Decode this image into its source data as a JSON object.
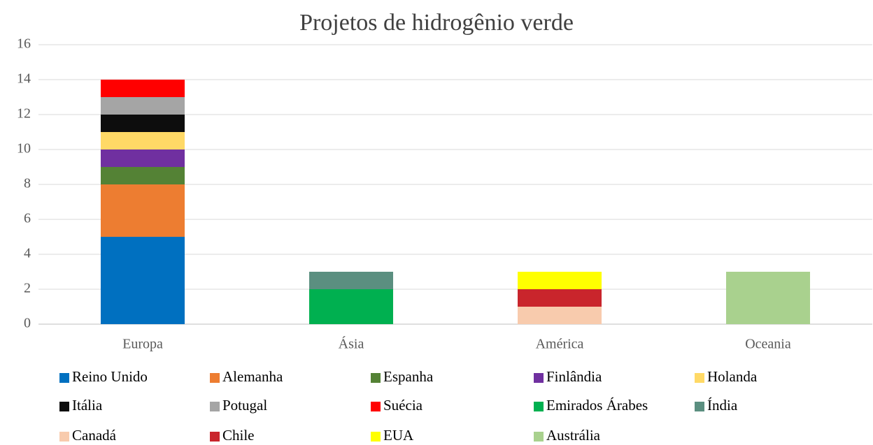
{
  "chart_data": {
    "type": "stacked_bar",
    "title": "Projetos de hidrogênio verde",
    "categories": [
      "Europa",
      "Ásia",
      "América",
      "Oceania"
    ],
    "series": [
      {
        "name": "Reino Unido",
        "color": "#0070c0",
        "values": [
          5,
          0,
          0,
          0
        ]
      },
      {
        "name": "Alemanha",
        "color": "#ed7d31",
        "values": [
          3,
          0,
          0,
          0
        ]
      },
      {
        "name": "Espanha",
        "color": "#548235",
        "values": [
          1,
          0,
          0,
          0
        ]
      },
      {
        "name": "Finlândia",
        "color": "#7030a0",
        "values": [
          1,
          0,
          0,
          0
        ]
      },
      {
        "name": "Holanda",
        "color": "#ffd966",
        "values": [
          1,
          0,
          0,
          0
        ]
      },
      {
        "name": "Itália",
        "color": "#0d0d0d",
        "values": [
          1,
          0,
          0,
          0
        ]
      },
      {
        "name": "Potugal",
        "color": "#a5a5a5",
        "values": [
          1,
          0,
          0,
          0
        ]
      },
      {
        "name": "Suécia",
        "color": "#ff0000",
        "values": [
          1,
          0,
          0,
          0
        ]
      },
      {
        "name": "Emirados Árabes",
        "color": "#00b050",
        "values": [
          0,
          2,
          0,
          0
        ]
      },
      {
        "name": "Índia",
        "color": "#5b8f80",
        "values": [
          0,
          1,
          0,
          0
        ]
      },
      {
        "name": "Canadá",
        "color": "#f8cbad",
        "values": [
          0,
          0,
          1,
          0
        ]
      },
      {
        "name": "Chile",
        "color": "#c9252c",
        "values": [
          0,
          0,
          1,
          0
        ]
      },
      {
        "name": "EUA",
        "color": "#ffff00",
        "values": [
          0,
          0,
          1,
          0
        ]
      },
      {
        "name": "Austrália",
        "color": "#a9d18e",
        "values": [
          0,
          0,
          0,
          3
        ]
      }
    ],
    "ylim": [
      0,
      16
    ],
    "yticks": [
      0,
      2,
      4,
      6,
      8,
      10,
      12,
      14,
      16
    ],
    "grid": true,
    "legend": "bottom"
  }
}
